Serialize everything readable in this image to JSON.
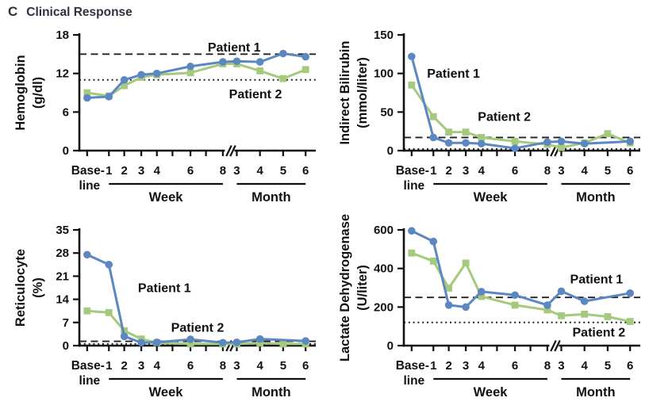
{
  "panel": {
    "letter": "C",
    "title": "Clinical Response"
  },
  "colors": {
    "patient1": "#5b87c3",
    "patient2": "#a5ca7d",
    "axis": "#111111",
    "reference": "#222222",
    "heading": "#2e3240",
    "background": "#ffffff"
  },
  "x_axis": {
    "baseline_label_lines": [
      "Base-",
      "line"
    ],
    "x_categories": [
      "Baseline",
      "Week 1",
      "Week 2",
      "Week 3",
      "Week 4",
      "Week 6",
      "Week 8",
      "Month 3",
      "Month 4",
      "Month 5",
      "Month 6"
    ],
    "tick_labels": [
      "1",
      "2",
      "3",
      "4",
      "6",
      "8",
      "3",
      "4",
      "5",
      "6"
    ],
    "positions": [
      0.033,
      0.125,
      0.19,
      0.262,
      0.328,
      0.47,
      0.607,
      0.666,
      0.764,
      0.862,
      0.957
    ],
    "minor_tick_positions": [
      0.394,
      0.5355
    ],
    "break_position": 0.635,
    "week_label": "Week",
    "month_label": "Month",
    "week_span": [
      0.125,
      0.607
    ],
    "month_span": [
      0.666,
      0.957
    ]
  },
  "chart_data": [
    {
      "id": "hemoglobin",
      "type": "line",
      "ylabel_lines": [
        "Hemoglobin",
        "(g/dl)"
      ],
      "ylim": [
        0,
        18
      ],
      "yticks": [
        0,
        6,
        12,
        18
      ],
      "reference_lines": {
        "dashed": 15,
        "dotted": 11
      },
      "series": [
        {
          "name": "Patient 1",
          "color_key": "patient1",
          "marker": "circle",
          "values": [
            8.2,
            8.4,
            11.0,
            11.8,
            12.0,
            13.1,
            13.8,
            13.9,
            13.8,
            15.1,
            14.6
          ]
        },
        {
          "name": "Patient 2",
          "color_key": "patient2",
          "marker": "square",
          "values": [
            9.0,
            8.5,
            10.1,
            11.4,
            11.8,
            12.1,
            13.5,
            13.5,
            12.4,
            11.2,
            12.6
          ]
        }
      ],
      "legend": [
        {
          "fx": 0.655,
          "y": 16.1
        },
        {
          "fx": 0.745,
          "y": 8.8
        }
      ]
    },
    {
      "id": "indirect-bilirubin",
      "type": "line",
      "ylabel_lines": [
        "Indirect Bilirubin",
        "(mmol/liter)"
      ],
      "ylim": [
        0,
        150
      ],
      "yticks": [
        0,
        50,
        100,
        150
      ],
      "reference_lines": {
        "dashed": 17,
        "dotted": 2
      },
      "series": [
        {
          "name": "Patient 1",
          "color_key": "patient1",
          "marker": "circle",
          "values": [
            122,
            17,
            10,
            10,
            9,
            3,
            11,
            12,
            9,
            null,
            12
          ]
        },
        {
          "name": "Patient 2",
          "color_key": "patient2",
          "marker": "square",
          "values": [
            85,
            44,
            24,
            24,
            17,
            12,
            8,
            4,
            10,
            22,
            10
          ]
        }
      ],
      "legend": [
        {
          "fx": 0.21,
          "y": 100
        },
        {
          "fx": 0.425,
          "y": 44
        }
      ]
    },
    {
      "id": "reticulocyte",
      "type": "line",
      "ylabel_lines": [
        "Reticulocyte",
        "(%)"
      ],
      "ylim": [
        0,
        35
      ],
      "yticks": [
        0,
        7,
        14,
        21,
        28,
        35
      ],
      "reference_lines": {
        "dashed": 1.3,
        "dotted": 0.5
      },
      "series": [
        {
          "name": "Patient 1",
          "color_key": "patient1",
          "marker": "circle",
          "values": [
            27.5,
            24.5,
            2.8,
            0.9,
            1.0,
            1.9,
            0.9,
            1.0,
            2.0,
            null,
            1.4
          ]
        },
        {
          "name": "Patient 2",
          "color_key": "patient2",
          "marker": "square",
          "values": [
            10.5,
            10.0,
            4.5,
            2.0,
            0.9,
            0.5,
            0.5,
            0.5,
            0.8,
            0.5,
            0.5
          ]
        }
      ],
      "legend": [
        {
          "fx": 0.36,
          "y": 17.5
        },
        {
          "fx": 0.5,
          "y": 5.5
        }
      ]
    },
    {
      "id": "lactate-dehydrogenase",
      "type": "line",
      "ylabel_lines": [
        "Lactate Dehydrogenase",
        "(U/liter)"
      ],
      "ylim": [
        0,
        600
      ],
      "yticks": [
        0,
        200,
        400,
        600
      ],
      "reference_lines": {
        "dashed": 250,
        "dotted": 120
      },
      "series": [
        {
          "name": "Patient 1",
          "color_key": "patient1",
          "marker": "circle",
          "values": [
            595,
            540,
            210,
            200,
            280,
            262,
            210,
            282,
            230,
            null,
            272
          ]
        },
        {
          "name": "Patient 2",
          "color_key": "patient2",
          "marker": "square",
          "values": [
            480,
            438,
            298,
            428,
            255,
            210,
            185,
            155,
            163,
            150,
            125
          ]
        }
      ],
      "legend": [
        {
          "fx": 0.815,
          "y": 345
        },
        {
          "fx": 0.825,
          "y": 70
        }
      ]
    }
  ]
}
